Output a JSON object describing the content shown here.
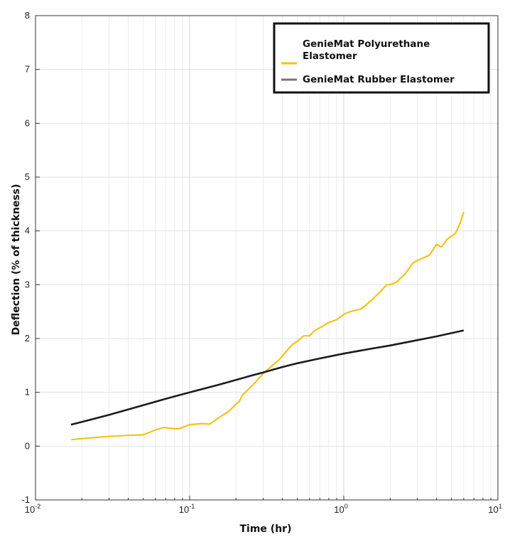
{
  "chart_data": {
    "type": "line",
    "xscale": "log",
    "xlim": [
      0.01,
      10
    ],
    "ylim": [
      -1,
      8
    ],
    "xlabel": "Time (hr)",
    "ylabel": "Deflection (% of thickness)",
    "x_ticks": [
      {
        "base": "10",
        "exp": "-2"
      },
      {
        "base": "10",
        "exp": "-1"
      },
      {
        "base": "10",
        "exp": "0"
      },
      {
        "base": "10",
        "exp": "1"
      }
    ],
    "y_ticks": [
      "-1",
      "0",
      "1",
      "2",
      "3",
      "4",
      "5",
      "6",
      "7",
      "8"
    ],
    "grid": true,
    "legend": {
      "placement": "top-right"
    },
    "series": [
      {
        "name": "GenieMat Polyurethane Elastomer",
        "color": "#f5c21a",
        "x": [
          0.017,
          0.02,
          0.03,
          0.04,
          0.05,
          0.06,
          0.068,
          0.075,
          0.085,
          0.1,
          0.12,
          0.135,
          0.15,
          0.18,
          0.2,
          0.21,
          0.22,
          0.23,
          0.24,
          0.26,
          0.28,
          0.3,
          0.33,
          0.36,
          0.38,
          0.4,
          0.43,
          0.46,
          0.5,
          0.55,
          0.6,
          0.65,
          0.7,
          0.75,
          0.8,
          0.9,
          1.0,
          1.1,
          1.3,
          1.5,
          1.7,
          1.9,
          2.0,
          2.2,
          2.5,
          2.8,
          3.0,
          3.3,
          3.6,
          4.0,
          4.3,
          4.7,
          5.0,
          5.3,
          5.7,
          6.0
        ],
        "y": [
          0.12,
          0.14,
          0.18,
          0.2,
          0.21,
          0.3,
          0.35,
          0.33,
          0.32,
          0.4,
          0.42,
          0.41,
          0.5,
          0.65,
          0.78,
          0.83,
          0.95,
          1.0,
          1.05,
          1.15,
          1.25,
          1.35,
          1.45,
          1.55,
          1.6,
          1.68,
          1.78,
          1.88,
          1.95,
          2.05,
          2.05,
          2.15,
          2.2,
          2.25,
          2.3,
          2.35,
          2.45,
          2.5,
          2.55,
          2.7,
          2.85,
          3.0,
          3.0,
          3.05,
          3.2,
          3.4,
          3.45,
          3.5,
          3.55,
          3.75,
          3.7,
          3.85,
          3.9,
          3.95,
          4.15,
          4.35
        ]
      },
      {
        "name": "GenieMat Rubber Elastomer",
        "color": "#1c1c1c",
        "x": [
          0.017,
          0.02,
          0.03,
          0.05,
          0.07,
          0.1,
          0.15,
          0.2,
          0.25,
          0.3,
          0.4,
          0.5,
          0.7,
          1.0,
          1.5,
          2.0,
          3.0,
          4.0,
          5.0,
          6.0
        ],
        "y": [
          0.4,
          0.45,
          0.58,
          0.76,
          0.88,
          1.0,
          1.13,
          1.23,
          1.31,
          1.37,
          1.47,
          1.54,
          1.63,
          1.72,
          1.81,
          1.87,
          1.97,
          2.04,
          2.1,
          2.15
        ]
      }
    ]
  }
}
